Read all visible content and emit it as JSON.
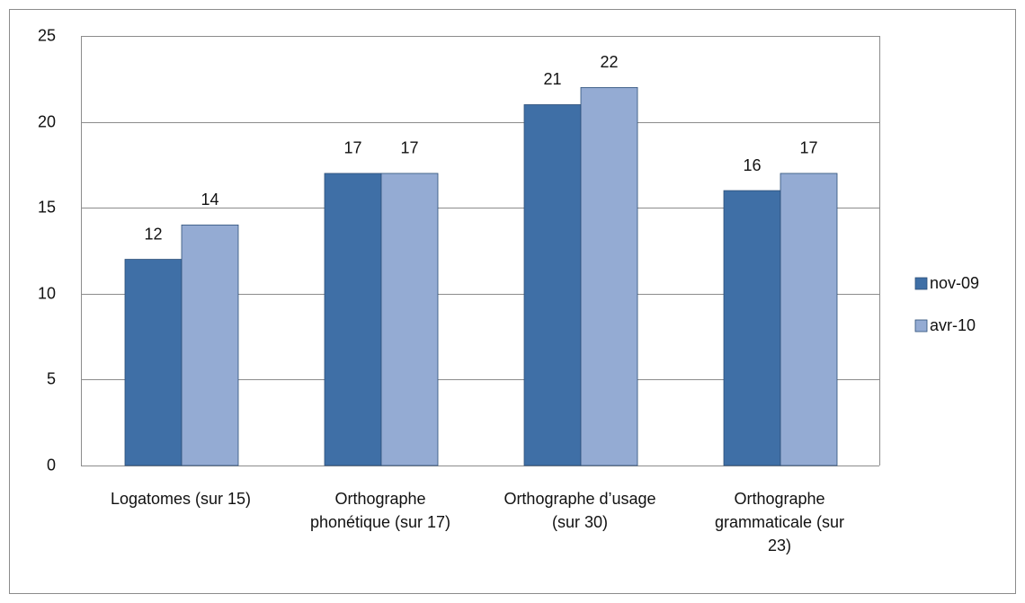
{
  "chart_data": {
    "type": "bar",
    "categories": [
      "Logatomes (sur 15)",
      "Orthographe phonétique (sur 17)",
      "Orthographe d’usage (sur 30)",
      "Orthographe grammaticale (sur 23)"
    ],
    "series": [
      {
        "name": "nov-09",
        "color": "#3f6fa6",
        "values": [
          12,
          17,
          21,
          16
        ]
      },
      {
        "name": "avr-10",
        "color": "#94abd3",
        "values": [
          14,
          17,
          22,
          17
        ]
      }
    ],
    "ylim": [
      0,
      25
    ],
    "yticks": [
      0,
      5,
      10,
      15,
      20,
      25
    ],
    "grid": true,
    "legend": "right"
  }
}
